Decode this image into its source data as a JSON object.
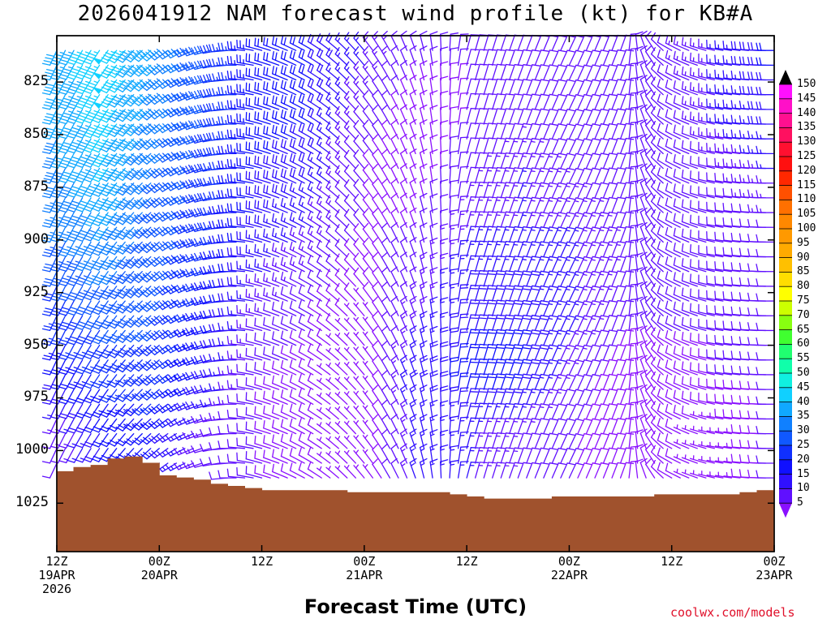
{
  "chart_data": {
    "type": "wind_barb_profile",
    "title": "2026041912 NAM forecast wind profile (kt) for KB#A",
    "xlabel": "Forecast Time (UTC)",
    "ylabel": "",
    "credit": "coolwx.com/models",
    "y_axis": {
      "unit": "hPa",
      "reversed": true,
      "ylim": [
        803,
        1048
      ],
      "ticks": [
        {
          "value": 825,
          "label": "825"
        },
        {
          "value": 850,
          "label": "850"
        },
        {
          "value": 875,
          "label": "875"
        },
        {
          "value": 900,
          "label": "900"
        },
        {
          "value": 925,
          "label": "925"
        },
        {
          "value": 950,
          "label": "950"
        },
        {
          "value": 975,
          "label": "975"
        },
        {
          "value": 1000,
          "label": "1000"
        },
        {
          "value": 1025,
          "label": "1025"
        }
      ]
    },
    "x_axis": {
      "unit": "forecast hour",
      "xlim": [
        0,
        84
      ],
      "ticks": [
        {
          "hour": 0,
          "lines": [
            "12Z",
            "19APR",
            "2026"
          ]
        },
        {
          "hour": 12,
          "lines": [
            "00Z",
            "20APR"
          ]
        },
        {
          "hour": 24,
          "lines": [
            "12Z"
          ]
        },
        {
          "hour": 36,
          "lines": [
            "00Z",
            "21APR"
          ]
        },
        {
          "hour": 48,
          "lines": [
            "12Z"
          ]
        },
        {
          "hour": 60,
          "lines": [
            "00Z",
            "22APR"
          ]
        },
        {
          "hour": 72,
          "lines": [
            "12Z"
          ]
        },
        {
          "hour": 84,
          "lines": [
            "00Z",
            "23APR"
          ]
        }
      ]
    },
    "colorbar": {
      "unit": "kt",
      "labels": [
        "150",
        "145",
        "140",
        "135",
        "130",
        "125",
        "120",
        "115",
        "110",
        "105",
        "100",
        "95",
        "90",
        "85",
        "80",
        "75",
        "70",
        "65",
        "60",
        "55",
        "50",
        "45",
        "40",
        "35",
        "30",
        "25",
        "20",
        "15",
        "10",
        "5"
      ],
      "colors": [
        "#ff10ff",
        "#ff10c8",
        "#ff1090",
        "#ff1060",
        "#ff1030",
        "#ff1010",
        "#ff2800",
        "#ff5000",
        "#ff7000",
        "#ff8800",
        "#ff9900",
        "#ffaa00",
        "#ffc000",
        "#ffdd00",
        "#ffff00",
        "#ccff00",
        "#88ff10",
        "#40ff30",
        "#20ff70",
        "#10ffaa",
        "#10f0e0",
        "#10d0ff",
        "#10a8ff",
        "#1080ff",
        "#1058ff",
        "#1030ff",
        "#1010ff",
        "#3010ff",
        "#6010ff",
        "#8a10ff"
      ]
    },
    "series": [
      {
        "hour": 0,
        "dir": 205,
        "speeds": [
          42,
          40,
          38,
          35,
          30,
          25,
          18,
          10
        ]
      },
      {
        "hour": 6,
        "dir": 215,
        "speeds": [
          48,
          47,
          45,
          40,
          35,
          30,
          25,
          20
        ]
      },
      {
        "hour": 12,
        "dir": 230,
        "speeds": [
          40,
          38,
          35,
          33,
          32,
          30,
          28,
          20
        ]
      },
      {
        "hour": 18,
        "dir": 255,
        "speeds": [
          30,
          30,
          28,
          28,
          25,
          22,
          18,
          12
        ]
      },
      {
        "hour": 24,
        "dir": 285,
        "speeds": [
          22,
          22,
          20,
          18,
          15,
          12,
          10,
          10
        ]
      },
      {
        "hour": 30,
        "dir": 300,
        "speeds": [
          20,
          20,
          18,
          15,
          12,
          10,
          8,
          8
        ]
      },
      {
        "hour": 36,
        "dir": 320,
        "speeds": [
          15,
          12,
          10,
          10,
          8,
          5,
          5,
          5
        ]
      },
      {
        "hour": 42,
        "dir": 340,
        "speeds": [
          10,
          8,
          8,
          10,
          12,
          15,
          18,
          15
        ]
      },
      {
        "hour": 48,
        "dir": 15,
        "speeds": [
          10,
          10,
          12,
          15,
          18,
          20,
          22,
          15
        ]
      },
      {
        "hour": 54,
        "dir": 20,
        "speeds": [
          12,
          12,
          15,
          15,
          18,
          20,
          20,
          12
        ]
      },
      {
        "hour": 60,
        "dir": 25,
        "speeds": [
          10,
          10,
          12,
          15,
          15,
          15,
          12,
          10
        ]
      },
      {
        "hour": 66,
        "dir": 20,
        "speeds": [
          10,
          10,
          10,
          12,
          12,
          10,
          8,
          8
        ]
      },
      {
        "hour": 72,
        "dir": 300,
        "speeds": [
          12,
          10,
          10,
          10,
          10,
          10,
          8,
          8
        ]
      },
      {
        "hour": 78,
        "dir": 280,
        "speeds": [
          15,
          15,
          12,
          10,
          10,
          10,
          10,
          5
        ]
      },
      {
        "hour": 84,
        "dir": 270,
        "speeds": [
          20,
          18,
          15,
          12,
          10,
          10,
          10,
          10
        ]
      }
    ],
    "series_levels_hPa": [
      820,
      845,
      870,
      895,
      920,
      945,
      970,
      995
    ],
    "surface_pressure": {
      "hours": [
        0,
        2,
        4,
        6,
        8,
        10,
        12,
        14,
        16,
        18,
        20,
        22,
        24,
        26,
        28,
        30,
        32,
        34,
        36,
        38,
        40,
        42,
        44,
        46,
        48,
        50,
        52,
        54,
        56,
        58,
        60,
        62,
        64,
        66,
        68,
        70,
        72,
        74,
        76,
        78,
        80,
        82,
        84
      ],
      "values_hPa": [
        1010,
        1008,
        1007,
        1004,
        1003,
        1006,
        1012,
        1013,
        1014,
        1016,
        1017,
        1018,
        1019,
        1019,
        1019,
        1019,
        1019,
        1020,
        1020,
        1020,
        1020,
        1020,
        1020,
        1021,
        1022,
        1023,
        1023,
        1023,
        1023,
        1022,
        1022,
        1022,
        1022,
        1022,
        1022,
        1021,
        1021,
        1021,
        1021,
        1021,
        1020,
        1019,
        1018
      ]
    }
  }
}
